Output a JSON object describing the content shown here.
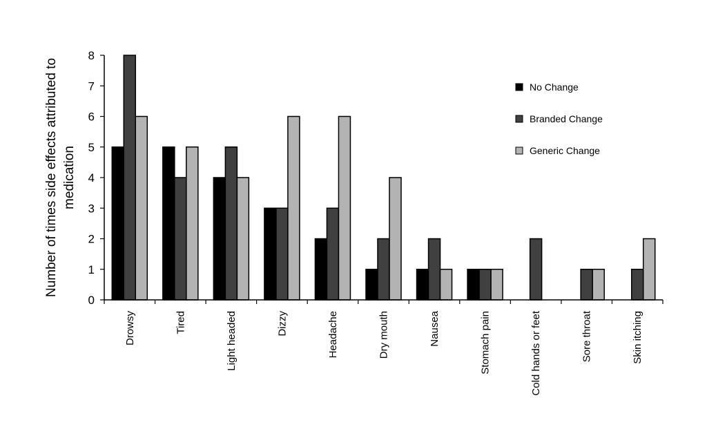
{
  "chart_data": {
    "type": "bar",
    "title": "",
    "xlabel": "",
    "ylabel": "Number of times side effects attributed to medication",
    "ylabel_lines": [
      "Number of times side effects attributed to",
      "medication"
    ],
    "ylim": [
      0,
      8
    ],
    "yticks": [
      "0",
      "1",
      "2",
      "3",
      "4",
      "5",
      "6",
      "7",
      "8"
    ],
    "grid": false,
    "legend_position": "right",
    "categories": [
      "Drowsy",
      "Tired",
      "Light headed",
      "Dizzy",
      "Headache",
      "Dry mouth",
      "Nausea",
      "Stomach pain",
      "Cold hands or feet",
      "Sore throat",
      "Skin itching"
    ],
    "series": [
      {
        "name": "No Change",
        "color": "#000000",
        "values": [
          5,
          5,
          4,
          3,
          2,
          1,
          1,
          1,
          0,
          0,
          0
        ]
      },
      {
        "name": "Branded Change",
        "color": "#404040",
        "values": [
          8,
          4,
          5,
          3,
          3,
          2,
          2,
          1,
          2,
          1,
          1
        ]
      },
      {
        "name": "Generic Change",
        "color": "#b3b3b3",
        "values": [
          6,
          5,
          4,
          6,
          6,
          4,
          1,
          1,
          0,
          1,
          2
        ]
      }
    ]
  }
}
